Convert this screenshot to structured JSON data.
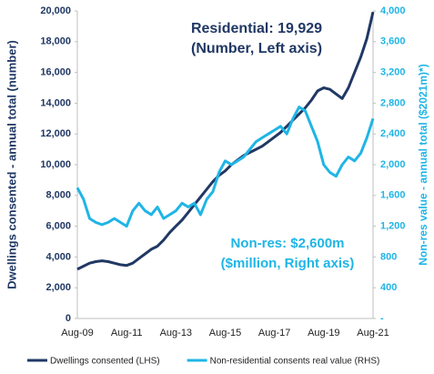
{
  "chart_data": {
    "type": "line",
    "categories": [
      "Aug-09",
      null,
      null,
      null,
      null,
      null,
      null,
      null,
      "Aug-11",
      null,
      null,
      null,
      null,
      null,
      null,
      null,
      "Aug-13",
      null,
      null,
      null,
      null,
      null,
      null,
      null,
      "Aug-15",
      null,
      null,
      null,
      null,
      null,
      null,
      null,
      "Aug-17",
      null,
      null,
      null,
      null,
      null,
      null,
      null,
      "Aug-19",
      null,
      null,
      null,
      null,
      null,
      null,
      null,
      "Aug-21"
    ],
    "series": [
      {
        "name": "Dwellings consented (LHS)",
        "color": "#203864",
        "axis": "y",
        "values": [
          3200,
          3400,
          3600,
          3700,
          3750,
          3700,
          3600,
          3500,
          3450,
          3600,
          3900,
          4200,
          4500,
          4700,
          5100,
          5600,
          6000,
          6400,
          6900,
          7400,
          7900,
          8400,
          8900,
          9300,
          9600,
          10000,
          10300,
          10600,
          10800,
          11000,
          11200,
          11500,
          11800,
          12100,
          12500,
          12900,
          13300,
          13700,
          14200,
          14800,
          15000,
          14900,
          14600,
          14300,
          15000,
          16000,
          17000,
          18200,
          19929
        ]
      },
      {
        "name": "Non-residential consents real value (RHS)",
        "color": "#1fb5e6",
        "axis": "y2",
        "values": [
          1700,
          1550,
          1300,
          1250,
          1220,
          1250,
          1300,
          1250,
          1200,
          1400,
          1500,
          1400,
          1350,
          1450,
          1300,
          1350,
          1400,
          1500,
          1450,
          1500,
          1350,
          1550,
          1650,
          1900,
          2050,
          2000,
          2050,
          2100,
          2200,
          2300,
          2350,
          2400,
          2450,
          2500,
          2400,
          2600,
          2750,
          2700,
          2500,
          2300,
          2000,
          1900,
          1850,
          2000,
          2100,
          2050,
          2150,
          2350,
          2600
        ]
      }
    ],
    "ylabel": "Dwellings consented - annual total (number)",
    "y2label": "Non-res value - annual total ($2021m)*)",
    "ylim": [
      0,
      20000
    ],
    "yticks": [
      0,
      {
        "value": 2000,
        "label": "2,000"
      },
      {
        "value": 4000,
        "label": "4,000"
      },
      {
        "value": 6000,
        "label": "6,000"
      },
      {
        "value": 8000,
        "label": "8,000"
      },
      {
        "value": 10000,
        "label": "10,000"
      },
      {
        "value": 12000,
        "label": "12,000"
      },
      {
        "value": 14000,
        "label": "14,000"
      },
      {
        "value": 16000,
        "label": "16,000"
      },
      {
        "value": 18000,
        "label": "18,000"
      },
      {
        "value": 20000,
        "label": "20,000"
      }
    ],
    "y2lim": [
      0,
      4000
    ],
    "y2ticks": [
      {
        "value": 0,
        "label": "-"
      },
      400,
      800,
      {
        "value": 1200,
        "label": "1,200"
      },
      {
        "value": 1600,
        "label": "1,600"
      },
      {
        "value": 2000,
        "label": "2,000"
      },
      {
        "value": 2400,
        "label": "2,400"
      },
      {
        "value": 2800,
        "label": "2,800"
      },
      {
        "value": 3200,
        "label": "3,200"
      },
      {
        "value": 3600,
        "label": "3,600"
      },
      {
        "value": 4000,
        "label": "4,000"
      }
    ],
    "annotations": [
      "Residential: 19,929",
      "(Number, Left axis)",
      "Non-res: $2,600m",
      "($million, Right axis)"
    ],
    "legend": "bottom"
  }
}
